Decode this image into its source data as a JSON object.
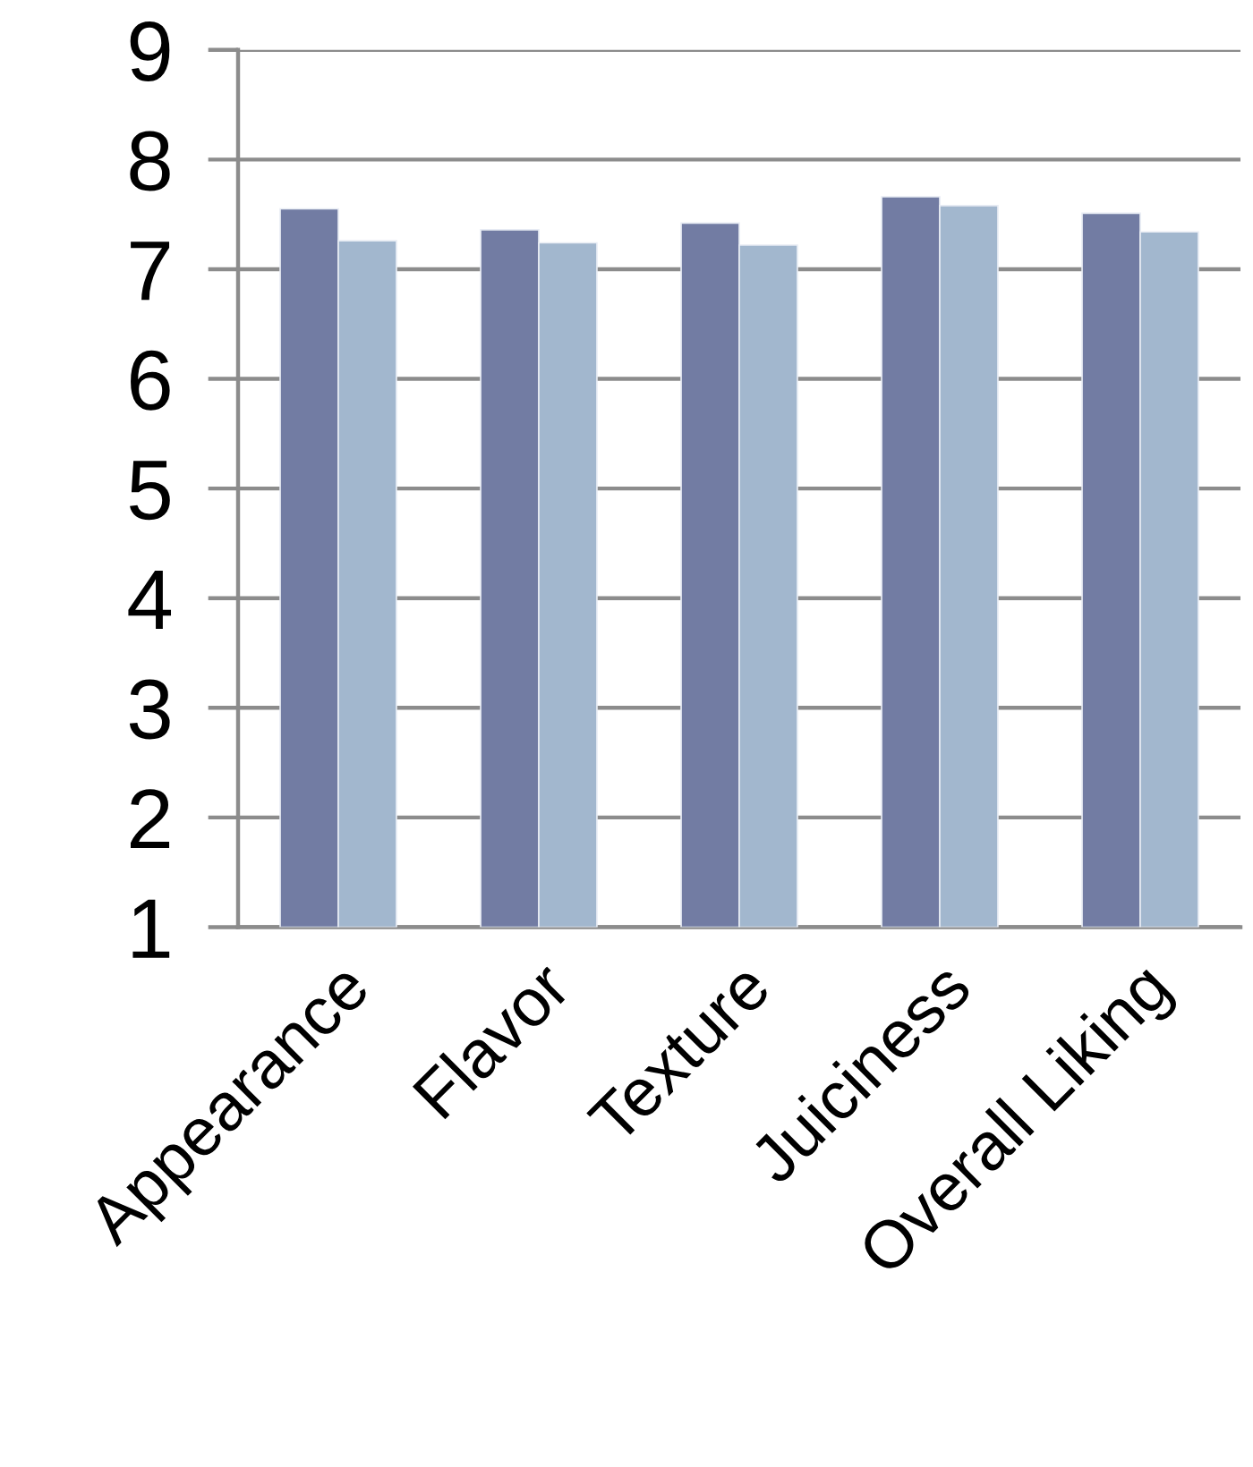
{
  "chart_data": {
    "type": "bar",
    "categories": [
      "Appearance",
      "Flavor",
      "Texture",
      "Juiciness",
      "Overall Liking"
    ],
    "series": [
      {
        "color": "#727ca3",
        "values": [
          7.55,
          7.36,
          7.42,
          7.66,
          7.51
        ]
      },
      {
        "color": "#a2b7ce",
        "values": [
          7.26,
          7.24,
          7.22,
          7.58,
          7.34
        ]
      }
    ],
    "ylim": [
      1,
      9
    ],
    "yticks": [
      1,
      2,
      3,
      4,
      5,
      6,
      7,
      8,
      9
    ],
    "grid": "y"
  }
}
